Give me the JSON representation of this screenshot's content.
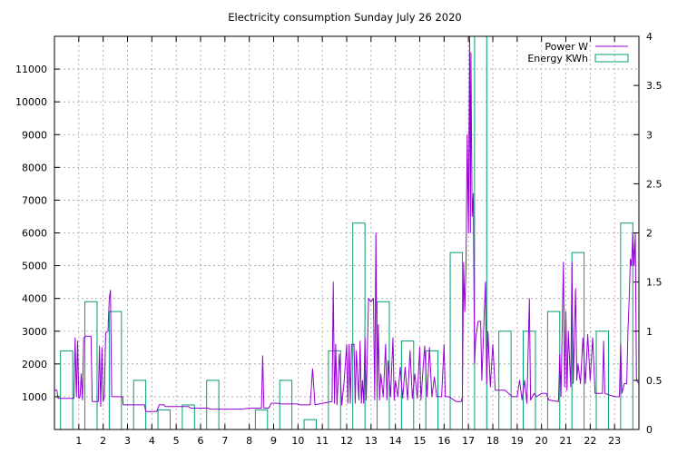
{
  "chart_data": {
    "type": "line",
    "title": "Electricity consumption Sunday July 26 2020",
    "xlabel": "",
    "ylabel": "",
    "y2label": "",
    "xlim": [
      0,
      24
    ],
    "ylim": [
      0,
      12000
    ],
    "y2lim": [
      0,
      4
    ],
    "grid": true,
    "legend_position": "top-right",
    "x_ticks": [
      "1",
      "2",
      "3",
      "4",
      "5",
      "6",
      "7",
      "8",
      "9",
      "10",
      "11",
      "12",
      "13",
      "14",
      "15",
      "16",
      "17",
      "18",
      "19",
      "20",
      "21",
      "22",
      "23"
    ],
    "y_ticks": [
      "1000",
      "2000",
      "3000",
      "4000",
      "5000",
      "6000",
      "7000",
      "8000",
      "9000",
      "10000",
      "11000"
    ],
    "y2_ticks": [
      "0",
      "0.5",
      "1",
      "1.5",
      "2",
      "2.5",
      "3",
      "3.5",
      "4"
    ],
    "series": [
      {
        "name": "Power W",
        "axis": "left",
        "color": "#9400d3",
        "style": "line",
        "points": [
          [
            0.0,
            1200
          ],
          [
            0.1,
            1200
          ],
          [
            0.15,
            950
          ],
          [
            0.5,
            950
          ],
          [
            0.8,
            950
          ],
          [
            0.85,
            2800
          ],
          [
            0.9,
            1000
          ],
          [
            0.95,
            2700
          ],
          [
            1.0,
            950
          ],
          [
            1.05,
            1000
          ],
          [
            1.1,
            1700
          ],
          [
            1.15,
            900
          ],
          [
            1.2,
            2800
          ],
          [
            1.3,
            2850
          ],
          [
            1.5,
            2850
          ],
          [
            1.55,
            850
          ],
          [
            1.8,
            850
          ],
          [
            1.85,
            2550
          ],
          [
            1.9,
            700
          ],
          [
            1.95,
            2500
          ],
          [
            2.0,
            850
          ],
          [
            2.05,
            1000
          ],
          [
            2.1,
            2950
          ],
          [
            2.2,
            3000
          ],
          [
            2.25,
            4000
          ],
          [
            2.3,
            4250
          ],
          [
            2.35,
            1000
          ],
          [
            2.6,
            1000
          ],
          [
            2.8,
            1000
          ],
          [
            2.82,
            750
          ],
          [
            3.5,
            750
          ],
          [
            3.7,
            750
          ],
          [
            3.75,
            550
          ],
          [
            4.2,
            550
          ],
          [
            4.3,
            750
          ],
          [
            4.5,
            750
          ],
          [
            4.55,
            700
          ],
          [
            5.0,
            700
          ],
          [
            5.5,
            700
          ],
          [
            5.6,
            650
          ],
          [
            6.0,
            650
          ],
          [
            6.3,
            650
          ],
          [
            6.4,
            620
          ],
          [
            7.0,
            620
          ],
          [
            7.5,
            620
          ],
          [
            7.8,
            630
          ],
          [
            8.0,
            650
          ],
          [
            8.5,
            650
          ],
          [
            8.55,
            2250
          ],
          [
            8.6,
            650
          ],
          [
            8.8,
            650
          ],
          [
            8.9,
            800
          ],
          [
            9.2,
            800
          ],
          [
            9.3,
            780
          ],
          [
            10.0,
            780
          ],
          [
            10.1,
            750
          ],
          [
            10.5,
            750
          ],
          [
            10.6,
            1850
          ],
          [
            10.7,
            750
          ],
          [
            11.0,
            800
          ],
          [
            11.4,
            850
          ],
          [
            11.45,
            4500
          ],
          [
            11.5,
            800
          ],
          [
            11.55,
            2600
          ],
          [
            11.6,
            750
          ],
          [
            11.7,
            2300
          ],
          [
            11.8,
            750
          ],
          [
            11.9,
            1500
          ],
          [
            12.0,
            2600
          ],
          [
            12.05,
            800
          ],
          [
            12.1,
            2600
          ],
          [
            12.15,
            800
          ],
          [
            12.2,
            2600
          ],
          [
            12.3,
            2600
          ],
          [
            12.35,
            800
          ],
          [
            12.4,
            2400
          ],
          [
            12.5,
            900
          ],
          [
            12.55,
            2700
          ],
          [
            12.6,
            800
          ],
          [
            12.65,
            1500
          ],
          [
            12.7,
            800
          ],
          [
            12.75,
            2800
          ],
          [
            12.8,
            900
          ],
          [
            12.9,
            4000
          ],
          [
            13.0,
            3900
          ],
          [
            13.1,
            4000
          ],
          [
            13.15,
            900
          ],
          [
            13.2,
            6000
          ],
          [
            13.25,
            1000
          ],
          [
            13.3,
            3200
          ],
          [
            13.35,
            900
          ],
          [
            13.4,
            1700
          ],
          [
            13.5,
            1000
          ],
          [
            13.6,
            2600
          ],
          [
            13.65,
            900
          ],
          [
            13.7,
            2100
          ],
          [
            13.8,
            1000
          ],
          [
            13.9,
            2800
          ],
          [
            13.95,
            900
          ],
          [
            14.0,
            1500
          ],
          [
            14.1,
            1000
          ],
          [
            14.2,
            1900
          ],
          [
            14.3,
            950
          ],
          [
            14.4,
            1900
          ],
          [
            14.5,
            900
          ],
          [
            14.6,
            2400
          ],
          [
            14.7,
            950
          ],
          [
            14.8,
            1700
          ],
          [
            14.9,
            950
          ],
          [
            15.0,
            2500
          ],
          [
            15.05,
            900
          ],
          [
            15.2,
            2550
          ],
          [
            15.3,
            1000
          ],
          [
            15.4,
            2500
          ],
          [
            15.5,
            1000
          ],
          [
            15.6,
            1600
          ],
          [
            15.7,
            1000
          ],
          [
            15.9,
            1000
          ],
          [
            16.0,
            2600
          ],
          [
            16.05,
            1000
          ],
          [
            16.2,
            1000
          ],
          [
            16.5,
            850
          ],
          [
            16.7,
            850
          ],
          [
            16.75,
            1000
          ],
          [
            16.8,
            5100
          ],
          [
            16.85,
            3600
          ],
          [
            16.9,
            5000
          ],
          [
            16.95,
            9000
          ],
          [
            17.0,
            6000
          ],
          [
            17.05,
            12000
          ],
          [
            17.08,
            6000
          ],
          [
            17.1,
            11500
          ],
          [
            17.15,
            6500
          ],
          [
            17.2,
            7200
          ],
          [
            17.25,
            2000
          ],
          [
            17.3,
            2800
          ],
          [
            17.4,
            3300
          ],
          [
            17.5,
            3300
          ],
          [
            17.55,
            1500
          ],
          [
            17.7,
            4500
          ],
          [
            17.75,
            1400
          ],
          [
            17.8,
            3000
          ],
          [
            17.9,
            1300
          ],
          [
            18.0,
            2600
          ],
          [
            18.1,
            1200
          ],
          [
            18.2,
            1200
          ],
          [
            18.5,
            1200
          ],
          [
            18.8,
            1000
          ],
          [
            19.0,
            1000
          ],
          [
            19.1,
            1500
          ],
          [
            19.2,
            900
          ],
          [
            19.3,
            1500
          ],
          [
            19.4,
            800
          ],
          [
            19.5,
            4000
          ],
          [
            19.55,
            900
          ],
          [
            19.7,
            1100
          ],
          [
            19.8,
            1000
          ],
          [
            20.0,
            1100
          ],
          [
            20.2,
            1100
          ],
          [
            20.3,
            900
          ],
          [
            20.7,
            850
          ],
          [
            20.75,
            2300
          ],
          [
            20.8,
            1000
          ],
          [
            20.9,
            5100
          ],
          [
            20.95,
            1300
          ],
          [
            21.0,
            3600
          ],
          [
            21.05,
            1200
          ],
          [
            21.1,
            3000
          ],
          [
            21.2,
            1300
          ],
          [
            21.25,
            5100
          ],
          [
            21.3,
            1400
          ],
          [
            21.4,
            4300
          ],
          [
            21.45,
            1500
          ],
          [
            21.5,
            2000
          ],
          [
            21.6,
            1400
          ],
          [
            21.7,
            2800
          ],
          [
            21.8,
            1400
          ],
          [
            21.9,
            2900
          ],
          [
            22.0,
            1500
          ],
          [
            22.1,
            2800
          ],
          [
            22.2,
            1100
          ],
          [
            22.5,
            1100
          ],
          [
            22.55,
            2700
          ],
          [
            22.6,
            1100
          ],
          [
            23.0,
            1000
          ],
          [
            23.2,
            1000
          ],
          [
            23.25,
            2600
          ],
          [
            23.3,
            1100
          ],
          [
            23.4,
            1400
          ],
          [
            23.5,
            1400
          ],
          [
            23.55,
            3000
          ],
          [
            23.6,
            4000
          ],
          [
            23.65,
            5200
          ],
          [
            23.7,
            5000
          ],
          [
            23.75,
            6000
          ],
          [
            23.8,
            5000
          ],
          [
            23.85,
            6000
          ],
          [
            23.9,
            1500
          ],
          [
            24.0,
            1400
          ]
        ]
      },
      {
        "name": "Energy KWh",
        "axis": "right",
        "color": "#009e73",
        "style": "bars",
        "bar_width": 0.5,
        "x": [
          0.0,
          1.0,
          2.0,
          3.0,
          4.0,
          5.0,
          6.0,
          7.0,
          8.0,
          9.0,
          10.0,
          11.0,
          12.0,
          13.0,
          14.0,
          15.0,
          16.0,
          17.0,
          18.0,
          19.0,
          20.0,
          21.0,
          22.0,
          23.0
        ],
        "values": [
          0.8,
          1.3,
          1.2,
          0.5,
          0.2,
          0.25,
          0.5,
          0.0,
          0.2,
          0.5,
          0.1,
          0.8,
          2.1,
          1.3,
          0.9,
          0.8,
          1.8,
          4.0,
          1.0,
          1.0,
          1.2,
          1.8,
          1.0,
          2.1
        ]
      }
    ]
  }
}
